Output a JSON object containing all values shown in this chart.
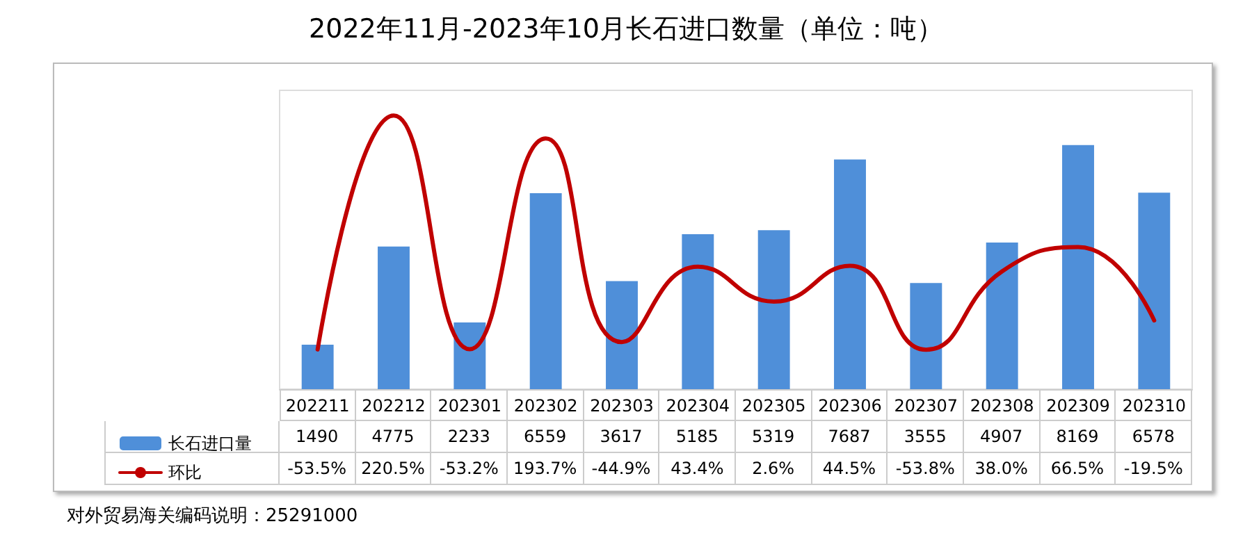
{
  "chart_data": {
    "type": "bar",
    "title": "2022年11月-2023年10月长石进口数量（单位：吨）",
    "categories": [
      "202211",
      "202212",
      "202301",
      "202302",
      "202303",
      "202304",
      "202305",
      "202306",
      "202307",
      "202308",
      "202309",
      "202310"
    ],
    "series": [
      {
        "name": "长石进口量",
        "color": "#4f8fd9",
        "values": [
          1490,
          4775,
          2233,
          6559,
          3617,
          5185,
          5319,
          7687,
          3555,
          4907,
          8169,
          6578
        ]
      },
      {
        "name": "环比",
        "type": "line",
        "axis": "y2",
        "color": "#c00000",
        "values": [
          -53.5,
          220.5,
          -53.2,
          193.7,
          -44.9,
          43.4,
          2.6,
          44.5,
          -53.8,
          38.0,
          66.5,
          -19.5
        ],
        "value_labels": [
          "-53.5%",
          "220.5%",
          "-53.2%",
          "193.7%",
          "-44.9%",
          "43.4%",
          "2.6%",
          "44.5%",
          "-53.8%",
          "38.0%",
          "66.5%",
          "-19.5%"
        ]
      }
    ],
    "data_labels": true,
    "legend": "bottom left",
    "grid": false,
    "tick_labels": "x",
    "marker": "none",
    "annotations": [
      "对外贸易海关编码说明：25291000"
    ]
  }
}
